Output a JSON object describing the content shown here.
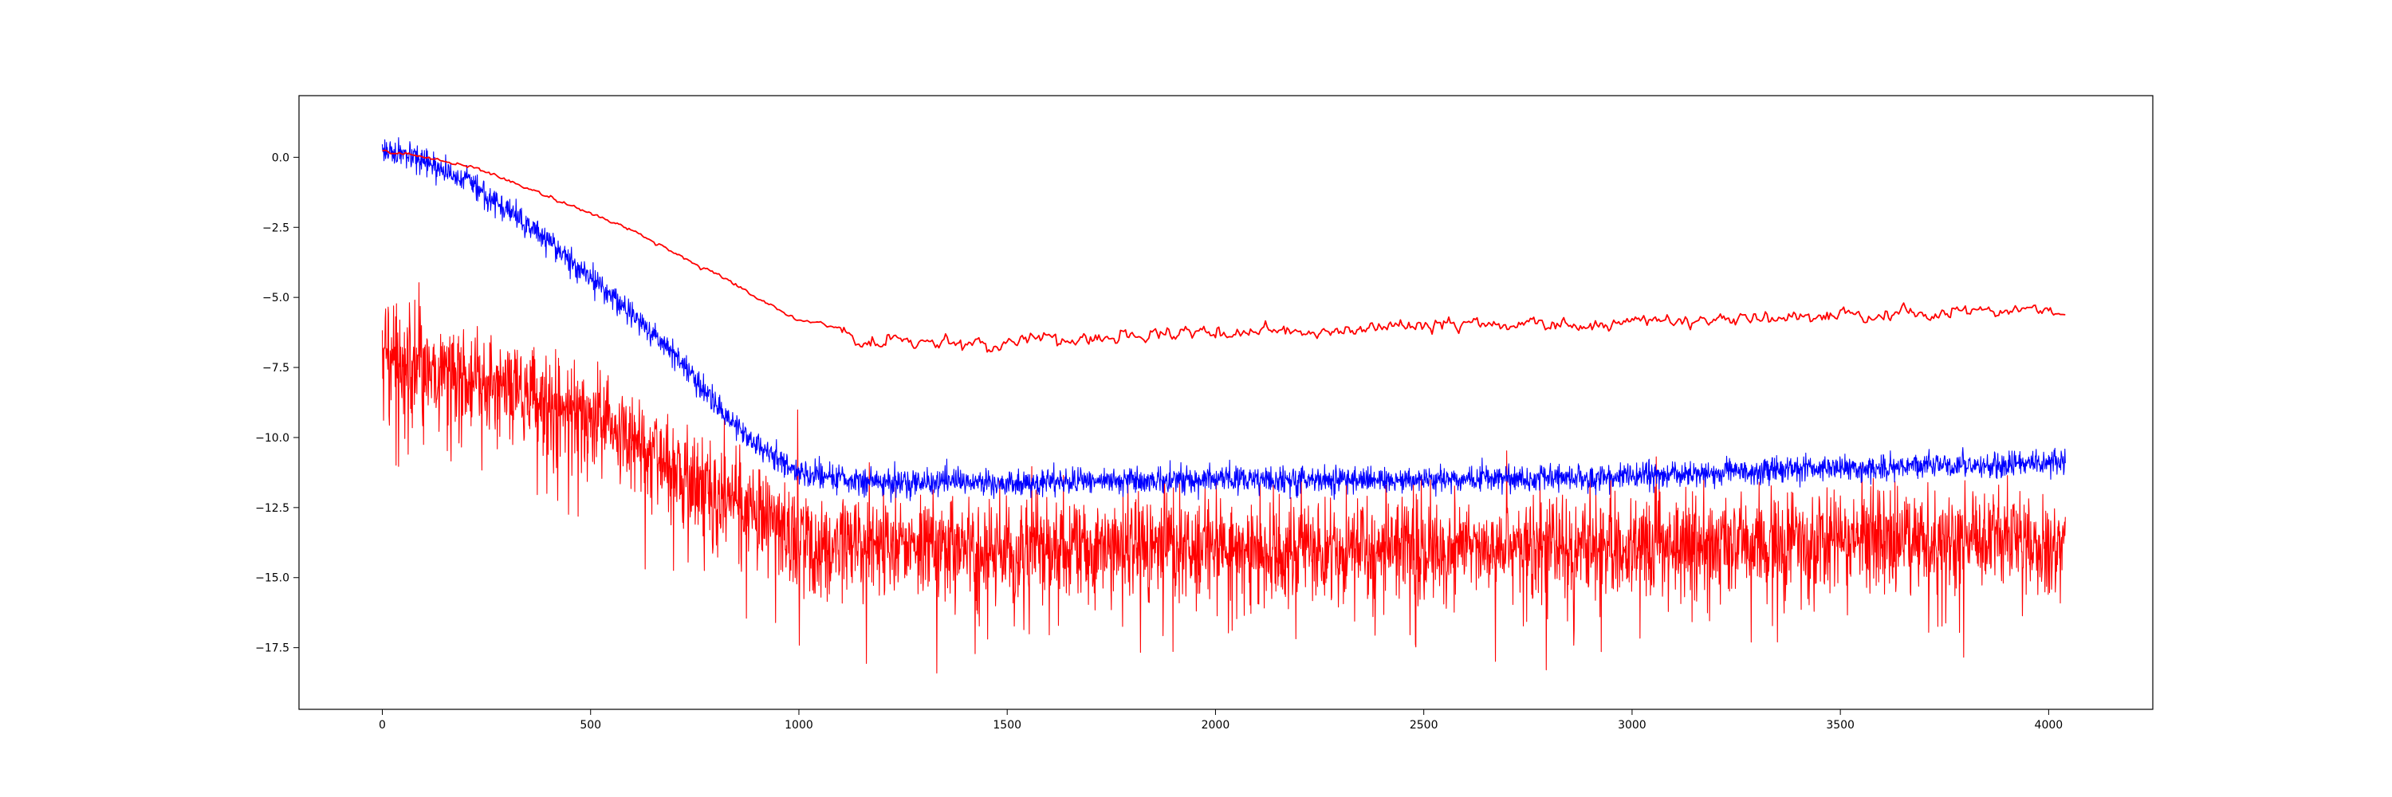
{
  "chart_data": {
    "type": "line",
    "title": "",
    "xlabel": "",
    "ylabel": "",
    "xlim": [
      -200,
      4250
    ],
    "ylim": [
      -19.7,
      2.2
    ],
    "x_ticks": [
      0,
      500,
      1000,
      1500,
      2000,
      2500,
      3000,
      3500,
      4000
    ],
    "x_tick_labels": [
      "0",
      "500",
      "1000",
      "1500",
      "2000",
      "2500",
      "3000",
      "3500",
      "4000"
    ],
    "y_ticks": [
      0.0,
      -2.5,
      -5.0,
      -7.5,
      -10.0,
      -12.5,
      -15.0,
      -17.5
    ],
    "y_tick_labels": [
      "0.0",
      "−2.5",
      "−5.0",
      "−7.5",
      "−10.0",
      "−12.5",
      "−15.0",
      "−17.5"
    ],
    "grid": false,
    "legend": "none",
    "series": [
      {
        "color": "#0000ff",
        "style": "noisy",
        "x": [
          0,
          100,
          200,
          300,
          400,
          500,
          600,
          700,
          800,
          900,
          1000,
          1100,
          1200,
          1500,
          2000,
          2500,
          3000,
          3500,
          4040
        ],
        "values": [
          0.3,
          -0.2,
          -0.8,
          -1.9,
          -3.0,
          -4.3,
          -5.6,
          -7.0,
          -8.8,
          -10.3,
          -11.2,
          -11.5,
          -11.6,
          -11.6,
          -11.5,
          -11.5,
          -11.4,
          -11.1,
          -10.9
        ],
        "noise_amplitude": 0.5
      },
      {
        "color": "#ff0000",
        "style": "smooth",
        "x": [
          0,
          100,
          200,
          300,
          400,
          500,
          600,
          700,
          800,
          900,
          1000,
          1050,
          1100,
          1150,
          1200,
          1300,
          1450,
          1600,
          2000,
          2500,
          3000,
          3500,
          4000,
          4040
        ],
        "values": [
          0.2,
          0.0,
          -0.3,
          -0.8,
          -1.4,
          -2.0,
          -2.6,
          -3.4,
          -4.2,
          -5.0,
          -5.8,
          -5.9,
          -6.1,
          -6.6,
          -6.6,
          -6.6,
          -6.7,
          -6.5,
          -6.3,
          -6.0,
          -5.9,
          -5.6,
          -5.4,
          -5.5
        ],
        "noise_amplitude": 0.1
      },
      {
        "color": "#ff0000",
        "style": "spiky",
        "x": [
          0,
          100,
          200,
          300,
          400,
          500,
          600,
          700,
          800,
          900,
          1000,
          1200,
          1500,
          2000,
          2500,
          3000,
          3500,
          4040
        ],
        "values": [
          -7.0,
          -7.5,
          -8.0,
          -8.4,
          -8.9,
          -9.4,
          -10.0,
          -11.0,
          -12.0,
          -12.8,
          -13.5,
          -14.0,
          -14.0,
          -14.0,
          -13.9,
          -13.8,
          -13.7,
          -13.7
        ],
        "noise_amplitude": 1.6
      }
    ]
  }
}
